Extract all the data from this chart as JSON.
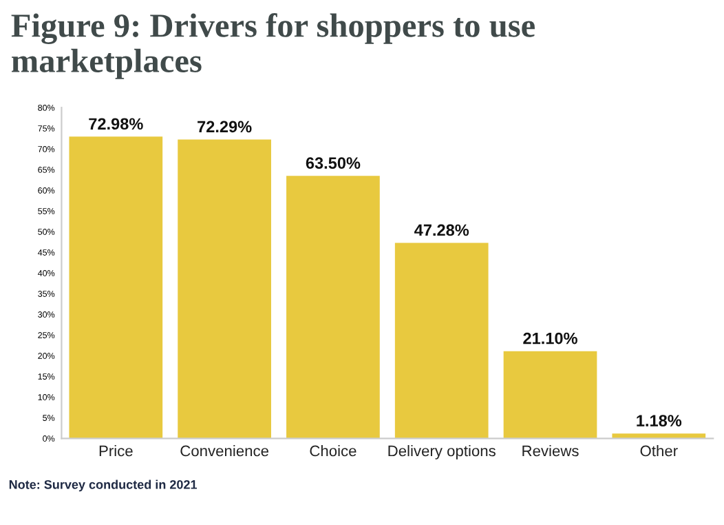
{
  "chart_data": {
    "type": "bar",
    "title": "Figure 9: Drivers for shoppers to use marketplaces",
    "categories": [
      "Price",
      "Convenience",
      "Choice",
      "Delivery options",
      "Reviews",
      "Other"
    ],
    "values": [
      72.98,
      72.29,
      63.5,
      47.28,
      21.1,
      1.18
    ],
    "value_labels": [
      "72.98%",
      "72.29%",
      "63.50%",
      "47.28%",
      "21.10%",
      "1.18%"
    ],
    "color": "#e8c93f",
    "ylim": [
      0,
      80
    ],
    "yticks": [
      {
        "value": 0,
        "label": "0%"
      },
      {
        "value": 5,
        "label": "5%"
      },
      {
        "value": 10,
        "label": "10%"
      },
      {
        "value": 15,
        "label": "15%"
      },
      {
        "value": 20,
        "label": "20%"
      },
      {
        "value": 25,
        "label": "25%"
      },
      {
        "value": 30,
        "label": "30%"
      },
      {
        "value": 35,
        "label": "35%"
      },
      {
        "value": 40,
        "label": "40%"
      },
      {
        "value": 45,
        "label": "45%"
      },
      {
        "value": 50,
        "label": "50%"
      },
      {
        "value": 55,
        "label": "55%"
      },
      {
        "value": 60,
        "label": "60%"
      },
      {
        "value": 65,
        "label": "65%"
      },
      {
        "value": 70,
        "label": "70%"
      },
      {
        "value": 75,
        "label": "75%"
      },
      {
        "value": 80,
        "label": "80%"
      }
    ],
    "grid": false,
    "annotations": [
      "Note: Survey conducted in 2021"
    ]
  }
}
